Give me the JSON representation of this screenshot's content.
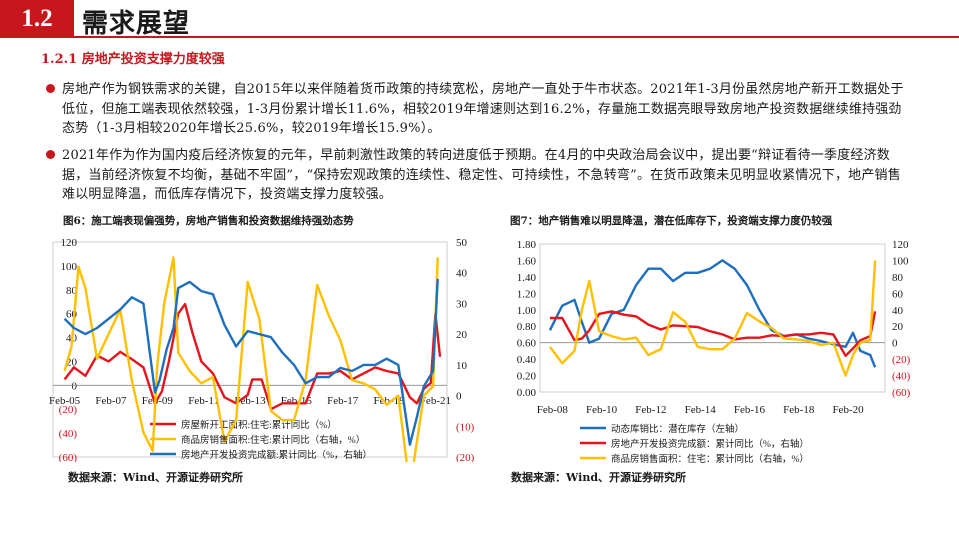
{
  "header": {
    "number": "1.2",
    "title": "需求展望"
  },
  "subtitle": "1.2.1 房地产投资支撑力度较强",
  "bullets": [
    "房地产作为钢铁需求的关键，自2015年以来伴随着货币政策的持续宽松，房地产一直处于牛市状态。2021年1-3月份虽然房地产新开工数据处于低位，但施工端表现依然较强，1-3月份累计增长11.6%，相较2019年增速则达到16.2%，存量施工数据亮眼导致房地产投资数据继续维持强劲态势（1-3月相较2020年增长25.6%，较2019年增长15.9%）。",
    "2021年作为作为国内疫后经济恢复的元年，早前刺激性政策的转向进度低于预期。在4月的中央政治局会议中，提出要“辩证看待一季度经济数据，当前经济恢复不均衡，基础不牢固”，“保持宏观政策的连续性、稳定性、可持续性，不急转弯”。在货币政策未见明显收紧情况下，地产销售难以明显降温，而低库存情况下，投资端支撑力度较强。"
  ],
  "colors": {
    "accent": "#c8161d",
    "red": "#e8141b",
    "yellow": "#ffc000",
    "blue": "#1f6fbf",
    "text": "#1a1a1a"
  },
  "chart_data": [
    {
      "type": "line",
      "title": "图6：施工端表现偏强势，房地产销售和投资数据维持强劲态势",
      "source": "数据来源：Wind、开源证券研究所",
      "x_ticks": [
        "Feb-05",
        "Feb-07",
        "Feb-09",
        "Feb-11",
        "Feb-13",
        "Feb-15",
        "Feb-17",
        "Feb-19",
        "Feb-21"
      ],
      "y_left": {
        "ticks": [
          "120",
          "100",
          "80",
          "60",
          "40",
          "20",
          "0",
          "(20)",
          "(40)",
          "(60)"
        ],
        "ylim": [
          -60,
          120
        ]
      },
      "y_right": {
        "ticks": [
          "50",
          "40",
          "30",
          "20",
          "10",
          "0",
          "(10)",
          "(20)"
        ],
        "ylim": [
          -20,
          50
        ]
      },
      "series": [
        {
          "name": "房屋新开工面积:住宅:累计同比（%）",
          "color": "#e8141b",
          "axis": "left",
          "x": [
            2005.1,
            2005.5,
            2006.0,
            2006.5,
            2007.0,
            2007.5,
            2008.0,
            2008.5,
            2009.0,
            2009.3,
            2009.6,
            2010.0,
            2010.3,
            2010.6,
            2011.0,
            2011.5,
            2012.0,
            2012.5,
            2013.0,
            2013.2,
            2013.6,
            2014.0,
            2014.5,
            2015.0,
            2015.5,
            2016.0,
            2016.5,
            2017.0,
            2017.5,
            2018.0,
            2018.5,
            2019.0,
            2019.5,
            2020.0,
            2020.3,
            2020.6,
            2020.9,
            2021.1,
            2021.3
          ],
          "y": [
            5,
            15,
            8,
            25,
            20,
            28,
            22,
            15,
            -15,
            -5,
            20,
            60,
            68,
            45,
            20,
            10,
            -10,
            -15,
            -8,
            5,
            5,
            -20,
            -15,
            -15,
            -15,
            10,
            10,
            12,
            5,
            10,
            15,
            12,
            10,
            -10,
            -15,
            -3,
            2,
            60,
            24
          ]
        },
        {
          "name": "商品房销售面积:住宅:累计同比（右轴，%）",
          "color": "#ffc000",
          "axis": "right",
          "x": [
            2005.1,
            2005.4,
            2005.7,
            2006.0,
            2006.5,
            2007.0,
            2007.5,
            2008.0,
            2008.5,
            2008.9,
            2009.1,
            2009.4,
            2009.8,
            2010.0,
            2010.5,
            2011.0,
            2011.5,
            2012.0,
            2012.5,
            2013.0,
            2013.5,
            2014.0,
            2014.5,
            2015.0,
            2015.5,
            2016.0,
            2016.5,
            2017.0,
            2017.5,
            2018.0,
            2018.5,
            2019.0,
            2019.5,
            2020.0,
            2020.3,
            2020.6,
            2021.0,
            2021.2
          ],
          "y": [
            8,
            16,
            42,
            35,
            12,
            20,
            28,
            5,
            -12,
            -18,
            10,
            30,
            45,
            14,
            8,
            4,
            6,
            -15,
            -8,
            37,
            25,
            -5,
            -8,
            -8,
            5,
            36,
            26,
            18,
            5,
            4,
            2,
            -3,
            0,
            -30,
            -15,
            0,
            3,
            45
          ]
        },
        {
          "name": "房地产开发投资完成额:累计同比（%，右轴）",
          "color": "#1f6fbf",
          "axis": "right",
          "x": [
            2005.1,
            2005.5,
            2006.0,
            2006.5,
            2007.0,
            2007.5,
            2008.0,
            2008.5,
            2009.0,
            2009.2,
            2009.5,
            2009.8,
            2010.0,
            2010.5,
            2011.0,
            2011.5,
            2012.0,
            2012.5,
            2013.0,
            2013.5,
            2014.0,
            2014.5,
            2015.0,
            2015.5,
            2016.0,
            2016.5,
            2017.0,
            2017.5,
            2018.0,
            2018.5,
            2019.0,
            2019.5,
            2020.0,
            2020.3,
            2020.6,
            2021.0,
            2021.2
          ],
          "y": [
            25,
            22,
            20,
            22,
            25,
            28,
            32,
            30,
            1,
            5,
            15,
            22,
            35,
            37,
            34,
            33,
            23,
            16,
            21,
            20,
            19,
            14,
            10,
            4,
            6,
            6,
            9,
            8,
            10,
            10,
            12,
            10,
            -16,
            -7,
            3,
            8,
            38
          ]
        }
      ]
    },
    {
      "type": "line",
      "title": "图7：地产销售难以明显降温，潜在低库存下，投资端支撑力度仍较强",
      "source": "数据来源：Wind、开源证券研究所",
      "x_ticks": [
        "Feb-08",
        "Feb-10",
        "Feb-12",
        "Feb-14",
        "Feb-16",
        "Feb-18",
        "Feb-20"
      ],
      "y_left": {
        "ticks": [
          "1.80",
          "1.60",
          "1.40",
          "1.20",
          "1.00",
          "0.80",
          "0.60",
          "0.40",
          "0.20",
          "0.00"
        ],
        "ylim": [
          0,
          1.8
        ]
      },
      "y_right": {
        "ticks": [
          "120",
          "100",
          "80",
          "60",
          "40",
          "20",
          "0",
          "(20)",
          "(40)",
          "(60)"
        ],
        "ylim": [
          -60,
          120
        ]
      },
      "series": [
        {
          "name": "动态库销比：潜在库存（左轴）",
          "color": "#1f6fbf",
          "axis": "left",
          "x": [
            2008.0,
            2008.5,
            2009.0,
            2009.3,
            2009.6,
            2010.0,
            2010.5,
            2011.0,
            2011.5,
            2012.0,
            2012.5,
            2013.0,
            2013.5,
            2014.0,
            2014.5,
            2015.0,
            2015.5,
            2016.0,
            2016.5,
            2017.0,
            2017.5,
            2018.0,
            2018.5,
            2019.0,
            2019.5,
            2020.0,
            2020.3,
            2020.6,
            2021.0,
            2021.2
          ],
          "y": [
            0.75,
            1.05,
            1.12,
            0.85,
            0.6,
            0.65,
            0.95,
            1.0,
            1.3,
            1.5,
            1.5,
            1.35,
            1.45,
            1.45,
            1.5,
            1.6,
            1.5,
            1.3,
            1.0,
            0.75,
            0.68,
            0.7,
            0.65,
            0.62,
            0.58,
            0.55,
            0.72,
            0.5,
            0.45,
            0.3
          ]
        },
        {
          "name": "房地产开发投资完成额：累计同比（%，右轴）",
          "color": "#e8141b",
          "axis": "right",
          "x": [
            2008.0,
            2008.5,
            2009.0,
            2009.3,
            2009.6,
            2010.0,
            2010.5,
            2011.0,
            2011.5,
            2012.0,
            2012.5,
            2013.0,
            2013.5,
            2014.0,
            2014.5,
            2015.0,
            2015.5,
            2016.0,
            2016.5,
            2017.0,
            2017.5,
            2018.0,
            2018.5,
            2019.0,
            2019.5,
            2020.0,
            2020.3,
            2020.6,
            2021.0,
            2021.2
          ],
          "y": [
            30,
            30,
            3,
            5,
            15,
            35,
            38,
            34,
            32,
            22,
            16,
            21,
            20,
            19,
            14,
            10,
            4,
            6,
            6,
            9,
            8,
            10,
            10,
            12,
            10,
            -16,
            -7,
            3,
            8,
            38
          ]
        },
        {
          "name": "商品房销售面积：住宅：累计同比（右轴，%）",
          "color": "#ffc000",
          "axis": "right",
          "x": [
            2008.0,
            2008.5,
            2009.0,
            2009.3,
            2009.6,
            2010.0,
            2010.5,
            2011.0,
            2011.5,
            2012.0,
            2012.5,
            2013.0,
            2013.5,
            2014.0,
            2014.5,
            2015.0,
            2015.5,
            2016.0,
            2016.5,
            2017.0,
            2017.5,
            2018.0,
            2018.5,
            2019.0,
            2019.5,
            2020.0,
            2020.3,
            2020.6,
            2021.0,
            2021.2
          ],
          "y": [
            -5,
            -25,
            -10,
            40,
            75,
            14,
            8,
            4,
            6,
            -15,
            -8,
            37,
            25,
            -5,
            -8,
            -8,
            5,
            36,
            26,
            18,
            5,
            4,
            2,
            -3,
            0,
            -40,
            -15,
            0,
            3,
            100
          ]
        }
      ]
    }
  ]
}
